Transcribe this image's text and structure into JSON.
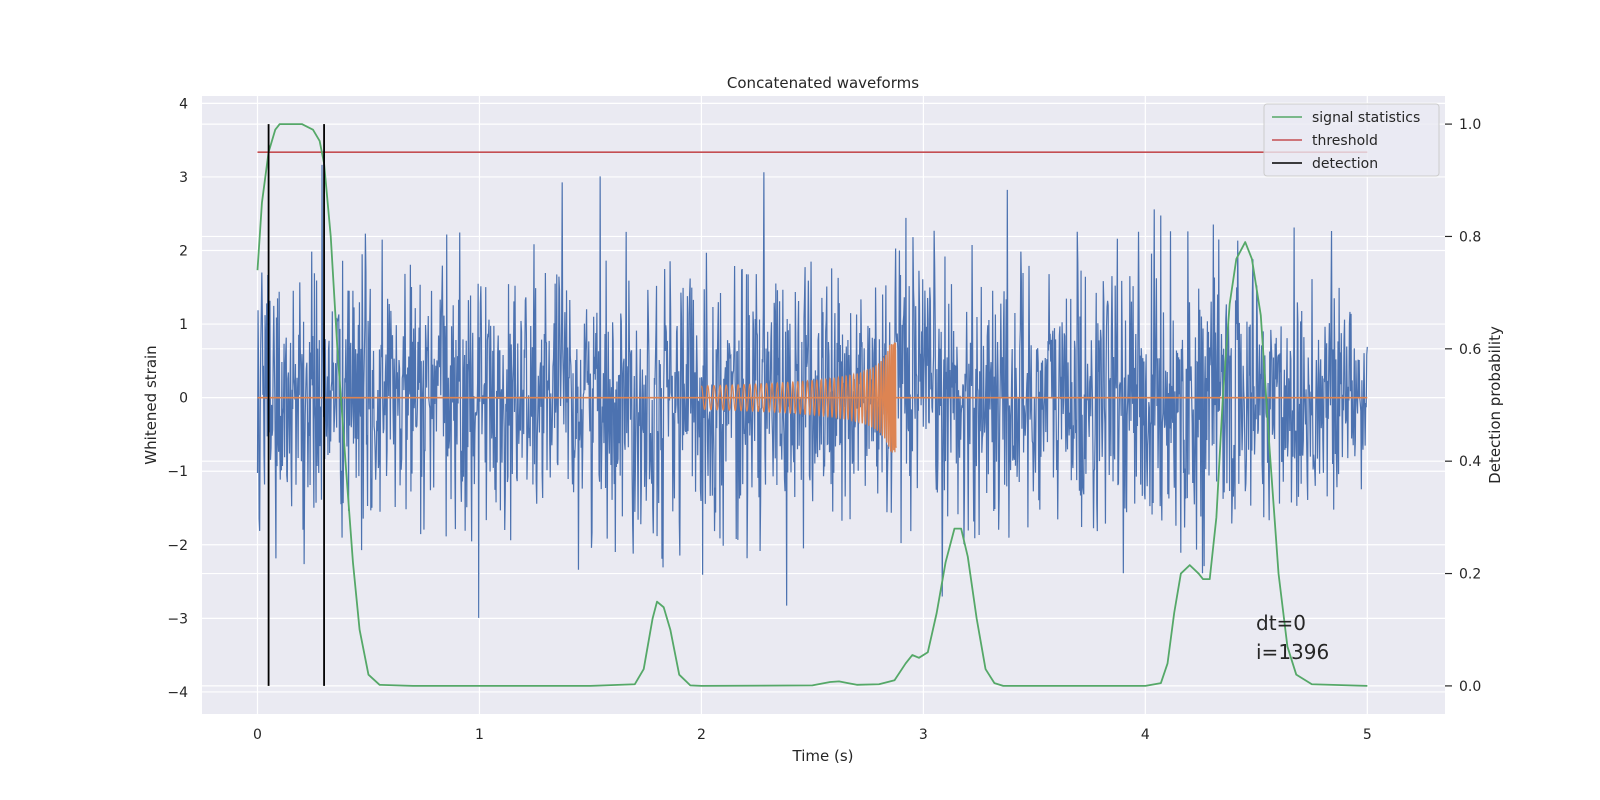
{
  "chart_data": {
    "type": "line",
    "title": "Concatenated waveforms",
    "xlabel": "Time (s)",
    "ylabel": "Whitened strain",
    "y2label": "Detection probability",
    "xlim": [
      -0.25,
      5.35
    ],
    "ylim": [
      -4.3,
      4.1
    ],
    "y2lim": [
      -0.05,
      1.05
    ],
    "x_ticks": [
      0,
      1,
      2,
      3,
      4,
      5
    ],
    "y_ticks": [
      -4,
      -3,
      -2,
      -1,
      0,
      1,
      2,
      3,
      4
    ],
    "y2_ticks": [
      0.0,
      0.2,
      0.4,
      0.6,
      0.8,
      1.0
    ],
    "x_tick_labels": [
      "0",
      "1",
      "2",
      "3",
      "4",
      "5"
    ],
    "y_tick_labels": [
      "−4",
      "−3",
      "−2",
      "−1",
      "0",
      "1",
      "2",
      "3",
      "4"
    ],
    "y2_tick_labels": [
      "0.0",
      "0.2",
      "0.4",
      "0.6",
      "0.8",
      "1.0"
    ],
    "grid": true,
    "legend_position": "top-right",
    "colors": {
      "strain": "#4c72b0",
      "injection": "#dd8452",
      "signal_statistics": "#55a868",
      "threshold": "#c44e52",
      "detection": "#000000",
      "plot_background": "#eaeaf2",
      "grid": "#ffffff"
    },
    "series": [
      {
        "name": "signal statistics",
        "axis": "right",
        "x": [
          0.0,
          0.02,
          0.05,
          0.08,
          0.1,
          0.15,
          0.2,
          0.25,
          0.28,
          0.3,
          0.33,
          0.36,
          0.4,
          0.43,
          0.46,
          0.5,
          0.55,
          0.7,
          1.0,
          1.5,
          1.7,
          1.74,
          1.78,
          1.8,
          1.83,
          1.86,
          1.9,
          1.95,
          2.0,
          2.5,
          2.58,
          2.62,
          2.66,
          2.7,
          2.8,
          2.87,
          2.92,
          2.95,
          2.98,
          3.02,
          3.06,
          3.1,
          3.14,
          3.17,
          3.2,
          3.24,
          3.28,
          3.32,
          3.36,
          3.5,
          4.0,
          4.07,
          4.1,
          4.13,
          4.16,
          4.2,
          4.24,
          4.26,
          4.29,
          4.32,
          4.35,
          4.38,
          4.41,
          4.45,
          4.48,
          4.52,
          4.56,
          4.6,
          4.64,
          4.68,
          4.75,
          5.0
        ],
        "y": [
          0.74,
          0.86,
          0.95,
          0.99,
          1.0,
          1.0,
          1.0,
          0.99,
          0.97,
          0.93,
          0.8,
          0.6,
          0.38,
          0.22,
          0.1,
          0.02,
          0.002,
          0.0,
          0.0,
          0.0,
          0.003,
          0.03,
          0.12,
          0.15,
          0.14,
          0.1,
          0.02,
          0.001,
          0.0,
          0.001,
          0.007,
          0.008,
          0.005,
          0.002,
          0.003,
          0.01,
          0.04,
          0.055,
          0.05,
          0.06,
          0.13,
          0.22,
          0.28,
          0.28,
          0.23,
          0.12,
          0.03,
          0.005,
          0.0,
          0.0,
          0.0,
          0.005,
          0.04,
          0.13,
          0.2,
          0.215,
          0.2,
          0.19,
          0.19,
          0.3,
          0.52,
          0.68,
          0.76,
          0.79,
          0.76,
          0.66,
          0.42,
          0.2,
          0.07,
          0.02,
          0.003,
          0.0
        ]
      },
      {
        "name": "threshold",
        "axis": "right",
        "x": [
          0.0,
          5.0
        ],
        "y": [
          0.95,
          0.95
        ]
      },
      {
        "name": "detection",
        "axis": "right",
        "type": "vlines",
        "x": [
          0.05,
          0.3
        ],
        "ymin": 0.0,
        "ymax": 1.0
      },
      {
        "axis": "left",
        "type": "noise",
        "x_range": [
          0.0,
          5.0
        ],
        "samples": 2048,
        "std": 0.9,
        "peak": 3.7
      },
      {
        "axis": "left",
        "type": "chirp",
        "x_range": [
          2.0,
          2.88
        ],
        "zero_line": [
          0.0,
          5.0
        ],
        "amplitude_start": 0.16,
        "amplitude_peak": 0.75
      }
    ],
    "annotations": [
      "dt=0",
      "i=1396"
    ]
  }
}
